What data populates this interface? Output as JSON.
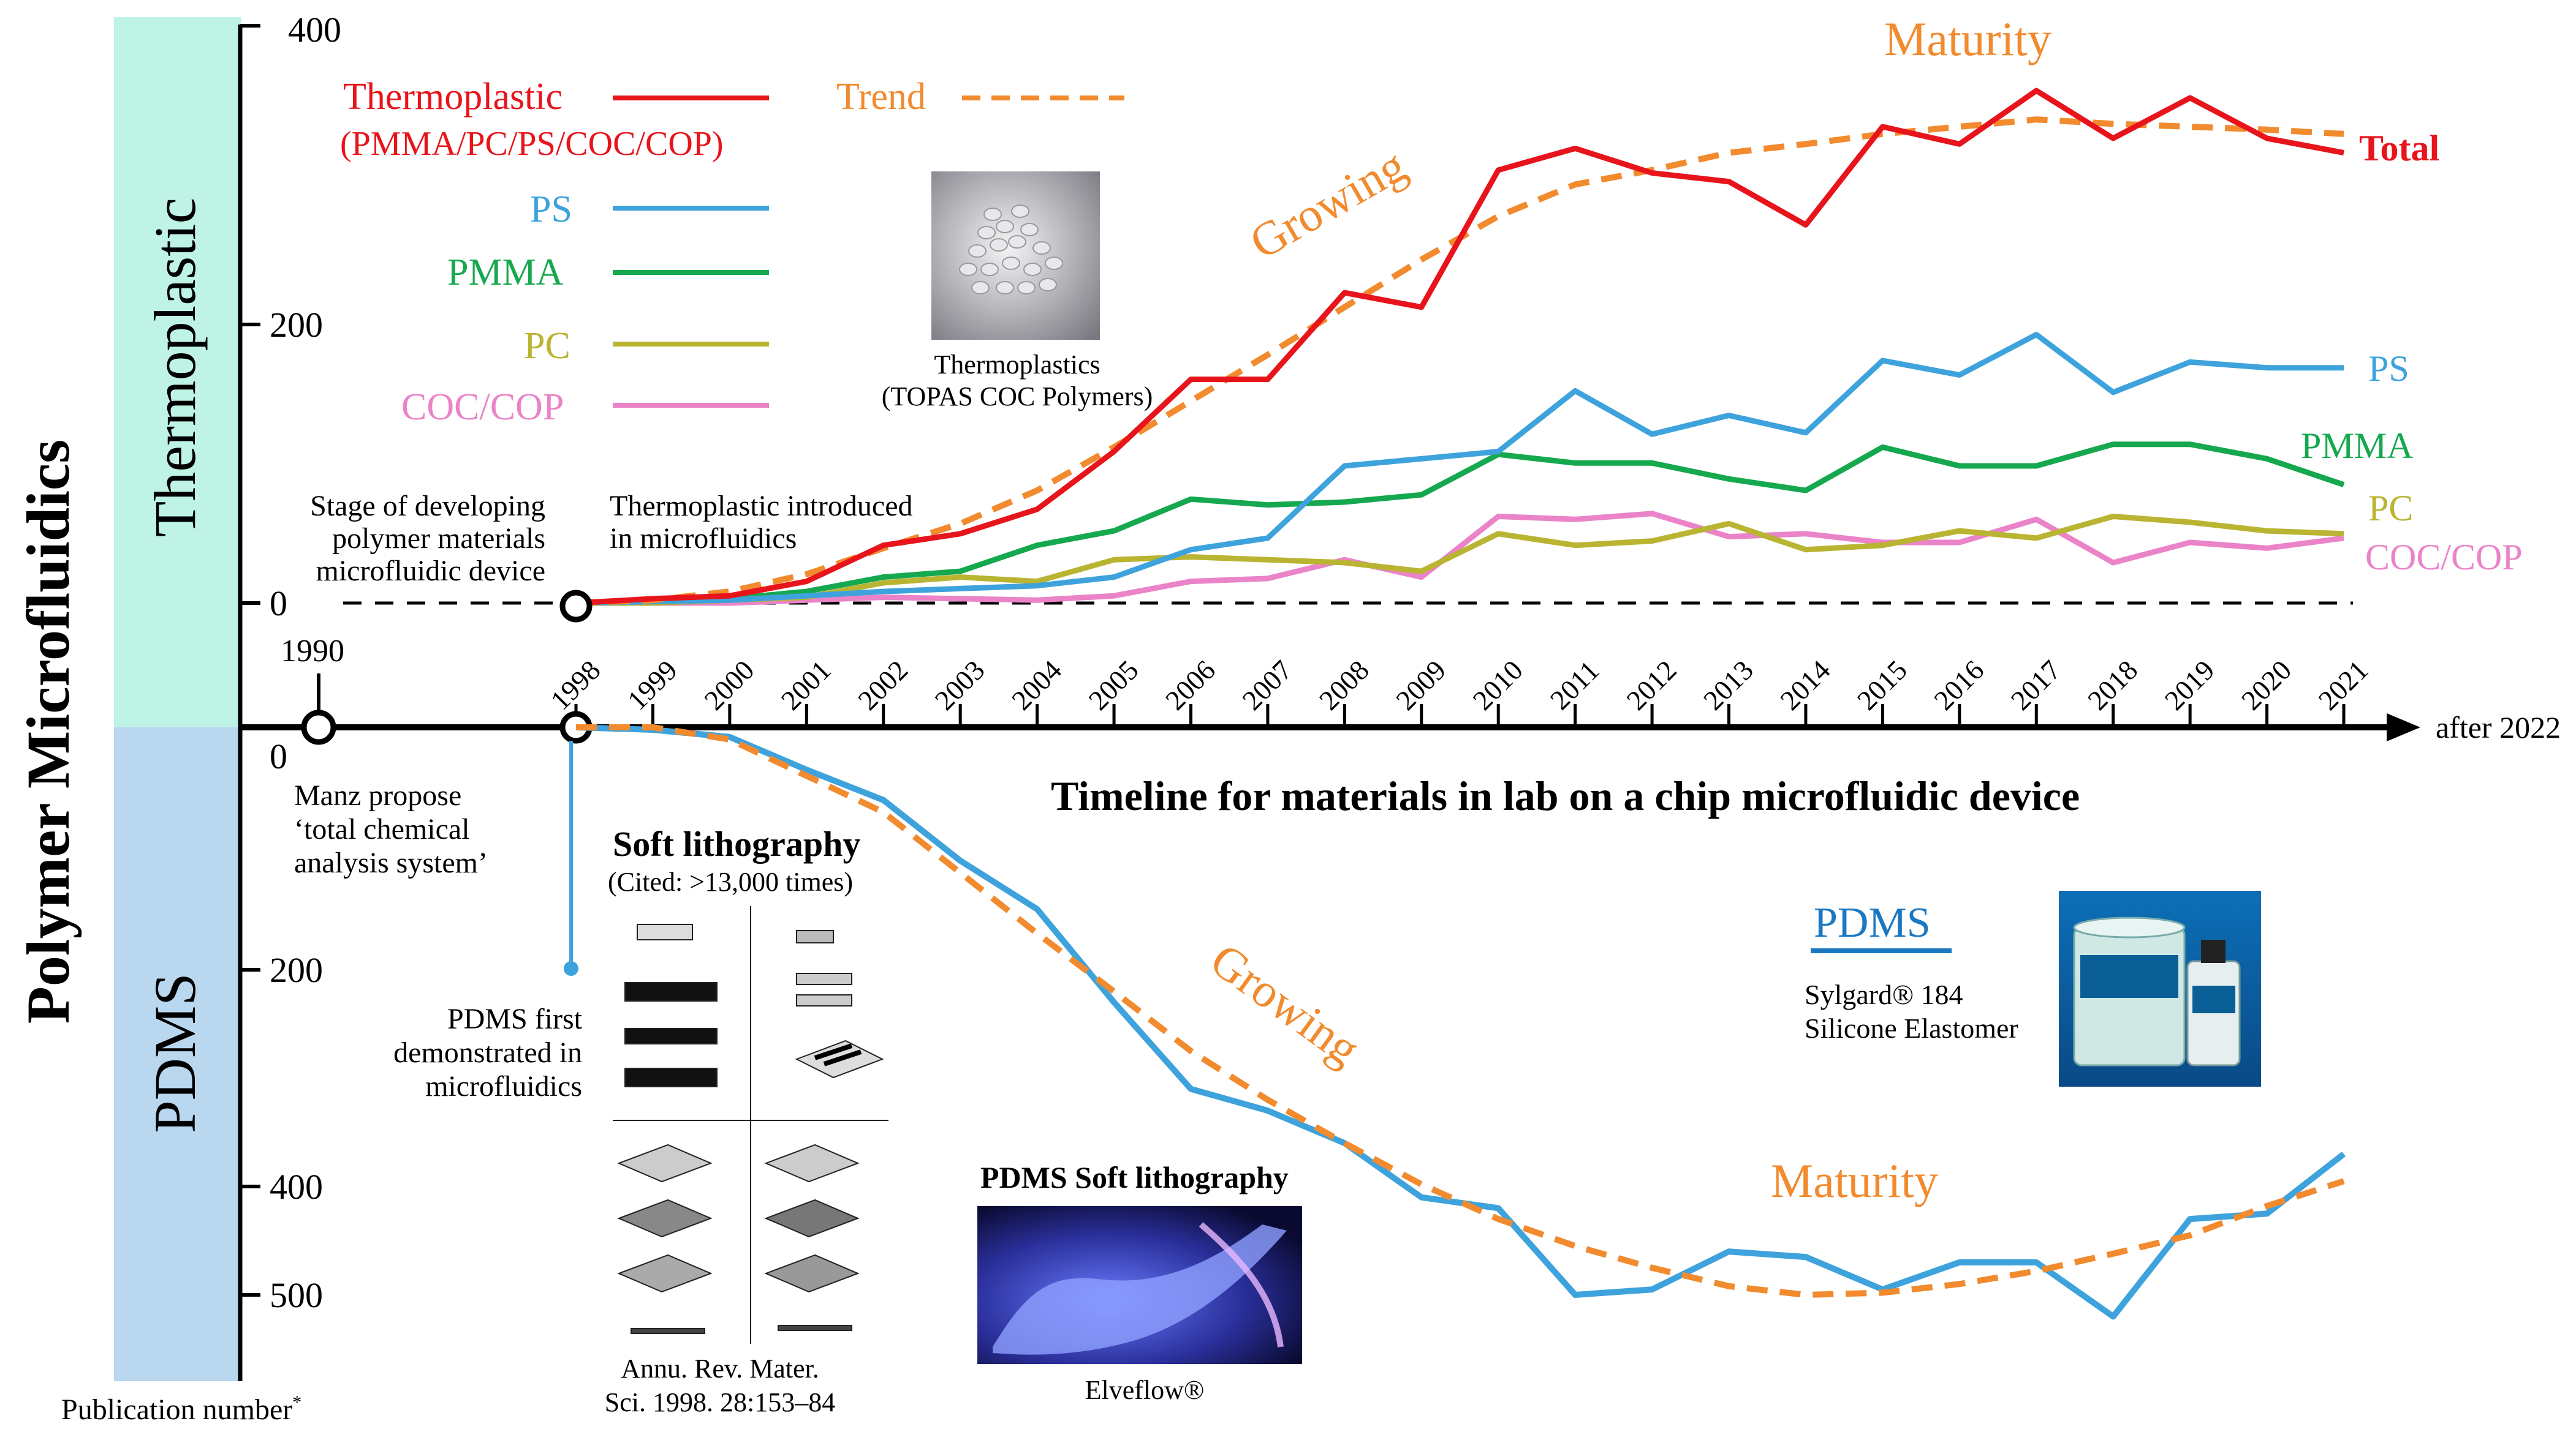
{
  "chart_data": {
    "type": "line",
    "title": "Timeline for materials in lab on a chip microfluidic device",
    "ylabel": "Polymer Microfluidics",
    "ylabel_note": "Publication number",
    "ylabel_note_mark": "*",
    "years": [
      1998,
      1999,
      2000,
      2001,
      2002,
      2003,
      2004,
      2005,
      2006,
      2007,
      2008,
      2009,
      2010,
      2011,
      2012,
      2013,
      2014,
      2015,
      2016,
      2017,
      2018,
      2019,
      2020,
      2021
    ],
    "timeline": {
      "start_label": "1990",
      "end_label": "after 2022",
      "zero_top": "0",
      "zero_bottom": "0"
    },
    "panels": {
      "top": {
        "label": "Thermoplastic",
        "ylim": [
          0,
          400
        ],
        "ticks": [
          "0",
          "200",
          "400"
        ],
        "series": [
          {
            "name": "Total",
            "color": "#e8141b",
            "values": [
              0,
              3,
              5,
              15,
              40,
              48,
              65,
              105,
              155,
              155,
              215,
              205,
              300,
              315,
              298,
              292,
              262,
              330,
              318,
              355,
              322,
              350,
              322,
              312
            ]
          },
          {
            "name": "PS",
            "color": "#3ea3dc",
            "values": [
              0,
              1,
              2,
              5,
              8,
              10,
              12,
              18,
              37,
              45,
              95,
              100,
              105,
              147,
              117,
              130,
              118,
              168,
              158,
              186,
              146,
              167,
              163,
              163
            ]
          },
          {
            "name": "PMMA",
            "color": "#15a84e",
            "values": [
              0,
              2,
              3,
              8,
              18,
              22,
              40,
              50,
              72,
              68,
              70,
              75,
              103,
              97,
              97,
              86,
              78,
              108,
              95,
              95,
              110,
              110,
              100,
              82
            ]
          },
          {
            "name": "PC",
            "color": "#b9b431",
            "values": [
              0,
              0,
              2,
              4,
              14,
              18,
              15,
              30,
              32,
              30,
              28,
              22,
              48,
              40,
              43,
              55,
              37,
              40,
              50,
              45,
              60,
              56,
              50,
              48
            ]
          },
          {
            "name": "COC/COP",
            "color": "#ea83c8",
            "values": [
              0,
              0,
              0,
              2,
              4,
              3,
              2,
              5,
              15,
              17,
              30,
              18,
              60,
              58,
              62,
              46,
              48,
              42,
              42,
              58,
              28,
              42,
              38,
              45
            ]
          }
        ],
        "trend": [
          0,
          2,
          8,
          20,
          38,
          55,
          78,
          108,
          140,
          172,
          205,
          238,
          268,
          290,
          300,
          312,
          318,
          325,
          330,
          335,
          332,
          330,
          328,
          325
        ],
        "label_total": "Total",
        "label_ps": "PS",
        "label_pmma": "PMMA",
        "label_pc": "PC",
        "label_coc": "COC/COP",
        "growing": "Growing",
        "maturity": "Maturity"
      },
      "bottom": {
        "label": "PDMS",
        "ticks": [
          "0",
          "200",
          "400",
          "500"
        ],
        "series": [
          {
            "name": "PDMS",
            "color": "#3ea3dc",
            "values": [
              0,
              2,
              8,
              35,
              60,
              110,
              150,
              230,
              310,
              330,
              360,
              410,
              420,
              500,
              495,
              460,
              465,
              495,
              470,
              470,
              520,
              430,
              425,
              370
            ]
          }
        ],
        "trend": [
          0,
          0,
          10,
          40,
          70,
          120,
          170,
          220,
          275,
          320,
          360,
          398,
          430,
          455,
          475,
          492,
          500,
          498,
          490,
          478,
          462,
          445,
          418,
          395
        ],
        "growing": "Growing",
        "maturity": "Maturity"
      }
    },
    "legend": {
      "thermoplastic": "Thermoplastic",
      "thermoplastic_sub": "(PMMA/PC/PS/COC/COP)",
      "ps": "PS",
      "pmma": "PMMA",
      "pc": "PC",
      "coc": "COC/COP",
      "trend": "Trend"
    },
    "annotations": {
      "stage_1": "Stage of developing",
      "stage_2": "polymer materials",
      "stage_3": "microfluidic device",
      "introduced_1": "Thermoplastic introduced",
      "introduced_2": "in microfluidics",
      "manz_1": "Manz propose",
      "manz_2": "‘total chemical",
      "manz_3": "analysis system’",
      "pdms_first_1": "PDMS first",
      "pdms_first_2": "demonstrated in",
      "pdms_first_3": "microfluidics",
      "softlitho_title": "Soft lithography",
      "softlitho_cited": "(Cited: >13,000 times)",
      "annu_1": "Annu. Rev. Mater.",
      "annu_2": "Sci. 1998. 28:153–84",
      "thermo_img_1": "Thermoplastics",
      "thermo_img_2": "(TOPAS COC Polymers)",
      "pdms_box_title": "PDMS",
      "sylgard_1": "Sylgard® 184",
      "sylgard_2": "Silicone Elastomer",
      "pdms_soft_title": "PDMS Soft lithography",
      "elveflow": "Elveflow®"
    },
    "colors": {
      "thermo_band": "#bff3e6",
      "pdms_band": "#b9d7ef",
      "trend": "#f28a2e",
      "axis": "#000000"
    }
  }
}
